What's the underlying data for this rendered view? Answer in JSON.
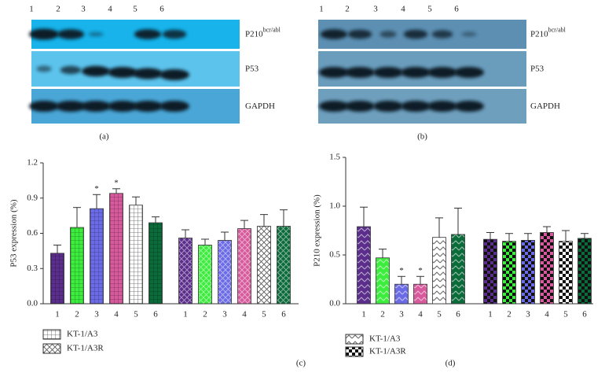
{
  "blots": [
    {
      "panel": "(a)",
      "lanes": [
        "1",
        "2",
        "3",
        "4",
        "5",
        "6"
      ],
      "rows": [
        {
          "label": "P210",
          "sup": "bcr/abl"
        },
        {
          "label": "P53"
        },
        {
          "label": "GAPDH"
        }
      ]
    },
    {
      "panel": "(b)",
      "lanes": [
        "1",
        "2",
        "3",
        "4",
        "5",
        "6"
      ],
      "rows": [
        {
          "label": "P210",
          "sup": "bcr/abl"
        },
        {
          "label": "P53"
        },
        {
          "label": "GAPDH"
        }
      ]
    }
  ],
  "chart_data": [
    {
      "type": "bar",
      "panel": "(c)",
      "ylabel": "P53 expression (%)",
      "categories": [
        "1",
        "2",
        "3",
        "4",
        "5",
        "6"
      ],
      "colors": [
        "#5b2e8c",
        "#3ded3d",
        "#6b6be8",
        "#d75a9c",
        "#ffffff",
        "#0b6b3a"
      ],
      "series": [
        {
          "name": "KT-1/A3",
          "pattern": "grid",
          "values": [
            0.43,
            0.65,
            0.81,
            0.94,
            0.84,
            0.69
          ],
          "errors": [
            0.07,
            0.17,
            0.12,
            0.04,
            0.07,
            0.05
          ]
        },
        {
          "name": "KT-1/A3R",
          "pattern": "crosshatch",
          "values": [
            0.56,
            0.5,
            0.54,
            0.64,
            0.66,
            0.66
          ],
          "errors": [
            0.07,
            0.05,
            0.07,
            0.07,
            0.1,
            0.14
          ]
        }
      ],
      "annotations": [
        {
          "series": "KT-1/A3",
          "category": "3",
          "text": "*"
        },
        {
          "series": "KT-1/A3",
          "category": "4",
          "text": "*"
        }
      ],
      "ylim": [
        0,
        1.2
      ],
      "yticks": [
        {
          "value": 0,
          "label": "0.0"
        },
        0.3,
        0.6,
        0.9,
        1.2
      ]
    },
    {
      "type": "bar",
      "panel": "(d)",
      "ylabel": "P210 expression (%)",
      "categories": [
        "1",
        "2",
        "3",
        "4",
        "5",
        "6"
      ],
      "colors": [
        "#5b2e8c",
        "#3ded3d",
        "#6b6be8",
        "#d75a9c",
        "#ffffff",
        "#0b6b3a"
      ],
      "series": [
        {
          "name": "KT-1/A3",
          "pattern": "zigzag",
          "values": [
            0.79,
            0.47,
            0.2,
            0.2,
            0.68,
            0.71
          ],
          "errors": [
            0.2,
            0.09,
            0.08,
            0.08,
            0.2,
            0.27
          ]
        },
        {
          "name": "KT-1/A3R",
          "pattern": "checker",
          "values": [
            0.66,
            0.64,
            0.65,
            0.73,
            0.64,
            0.67
          ],
          "errors": [
            0.07,
            0.08,
            0.07,
            0.06,
            0.11,
            0.05
          ]
        }
      ],
      "annotations": [
        {
          "series": "KT-1/A3",
          "category": "3",
          "text": "*"
        },
        {
          "series": "KT-1/A3",
          "category": "4",
          "text": "*"
        }
      ],
      "ylim": [
        0,
        1.5
      ],
      "yticks": [
        {
          "value": 0,
          "label": "0.0"
        },
        0.5,
        {
          "value": 1,
          "label": "1.0"
        },
        1.5
      ]
    }
  ]
}
